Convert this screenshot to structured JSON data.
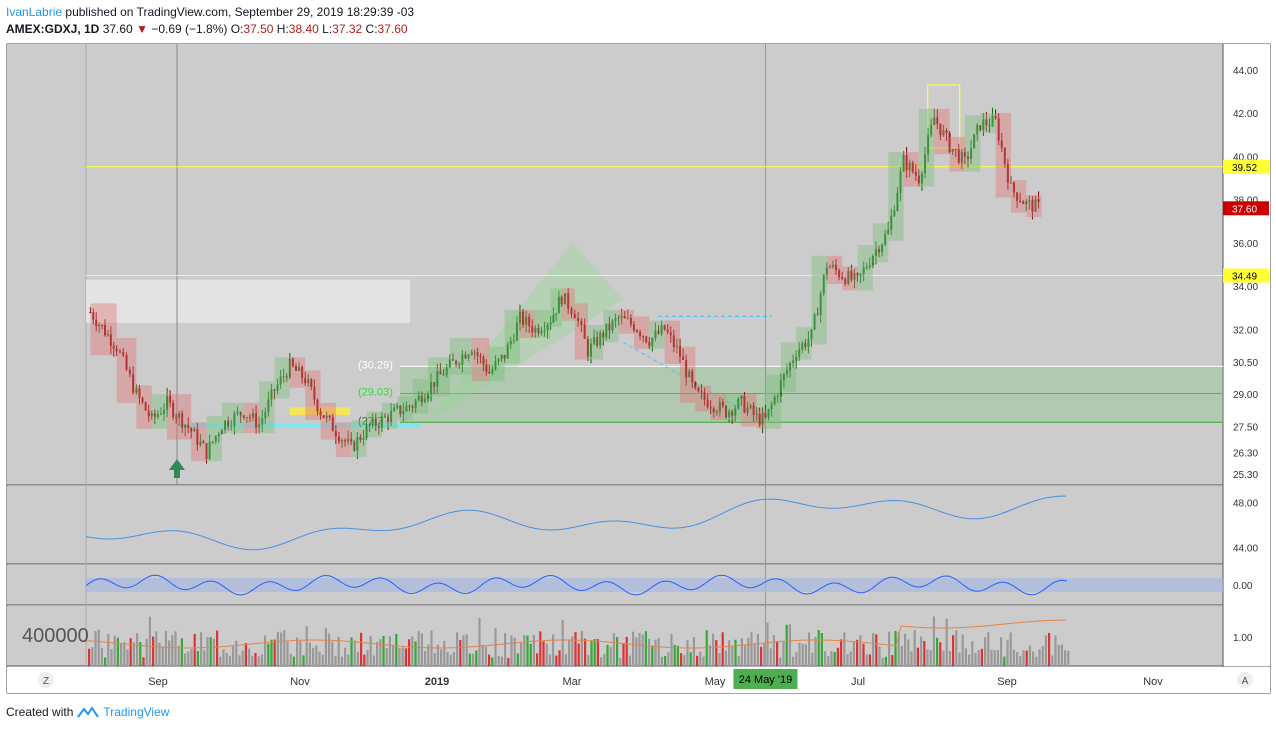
{
  "header": {
    "author": "IvanLabrie",
    "published_text": "published on TradingView.com, September 29, 2019 18:29:39 -03",
    "symbol": "AMEX:GDXJ, 1D",
    "last": "37.60",
    "change": "−0.69 (−1.8%)",
    "o_label": "O:",
    "o_value": "37.50",
    "h_label": "H:",
    "h_value": "38.40",
    "l_label": "L:",
    "l_value": "37.32",
    "c_label": "C:",
    "c_value": "37.60"
  },
  "footer": {
    "created_with": "Created with",
    "brand": "TradingView"
  },
  "colors": {
    "panel_bg": "#cccccc",
    "up": "#0b6b0b",
    "down": "#8b0000",
    "level_line": "#ffff33",
    "price_badge": "#cc0000",
    "level_badge": "#ffff33",
    "oscillator_line": "#2962ff",
    "rsi_line": "#4a90e2",
    "zone_green": "#7fbf7f",
    "zone_red": "#e07a7a"
  },
  "chart_data": {
    "type": "candlestick",
    "symbol": "AMEX:GDXJ",
    "timeframe": "1D",
    "price_axis": {
      "ticks": [
        "44.00",
        "42.00",
        "40.00",
        "38.00",
        "36.00",
        "34.00",
        "32.00",
        "30.50",
        "29.00",
        "27.50",
        "26.30",
        "25.30"
      ],
      "range": [
        24.8,
        45.2
      ]
    },
    "time_axis": {
      "labels": [
        "Sep",
        "Nov",
        "2019",
        "Mar",
        "May",
        "Jul",
        "Sep",
        "Nov"
      ],
      "highlight_label": "24 May '19"
    },
    "horizontal_levels": [
      {
        "price": 39.52,
        "label": "39.52"
      },
      {
        "price": 34.49,
        "label": "34.49"
      }
    ],
    "last_price_badge": "37.60",
    "zone_labels": [
      "(30.29)",
      "(29.03)",
      "(27.7"
    ],
    "series": [
      {
        "name": "close",
        "points": [
          [
            "2018-07-20",
            32.8
          ],
          [
            "2018-08-01",
            31.2
          ],
          [
            "2018-08-10",
            29.0
          ],
          [
            "2018-08-17",
            27.8
          ],
          [
            "2018-08-24",
            28.6
          ],
          [
            "2018-09-04",
            27.3
          ],
          [
            "2018-09-11",
            26.3
          ],
          [
            "2018-09-18",
            27.6
          ],
          [
            "2018-09-28",
            28.2
          ],
          [
            "2018-10-05",
            27.6
          ],
          [
            "2018-10-12",
            29.2
          ],
          [
            "2018-10-19",
            30.3
          ],
          [
            "2018-10-26",
            29.7
          ],
          [
            "2018-11-02",
            28.2
          ],
          [
            "2018-11-09",
            27.3
          ],
          [
            "2018-11-16",
            26.5
          ],
          [
            "2018-11-23",
            27.4
          ],
          [
            "2018-11-30",
            27.8
          ],
          [
            "2018-12-07",
            28.2
          ],
          [
            "2018-12-14",
            28.5
          ],
          [
            "2018-12-21",
            29.3
          ],
          [
            "2018-12-31",
            30.3
          ],
          [
            "2019-01-10",
            31.2
          ],
          [
            "2019-01-18",
            30.0
          ],
          [
            "2019-01-25",
            30.8
          ],
          [
            "2019-02-01",
            32.5
          ],
          [
            "2019-02-08",
            32.0
          ],
          [
            "2019-02-15",
            32.5
          ],
          [
            "2019-02-20",
            33.5
          ],
          [
            "2019-02-26",
            32.8
          ],
          [
            "2019-03-04",
            31.0
          ],
          [
            "2019-03-11",
            31.8
          ],
          [
            "2019-03-18",
            32.5
          ],
          [
            "2019-03-25",
            32.2
          ],
          [
            "2019-04-01",
            31.5
          ],
          [
            "2019-04-08",
            32.0
          ],
          [
            "2019-04-15",
            30.8
          ],
          [
            "2019-04-22",
            29.0
          ],
          [
            "2019-04-29",
            28.6
          ],
          [
            "2019-05-06",
            28.2
          ],
          [
            "2019-05-13",
            28.6
          ],
          [
            "2019-05-20",
            27.9
          ],
          [
            "2019-05-24",
            27.8
          ],
          [
            "2019-05-31",
            29.5
          ],
          [
            "2019-06-07",
            31.0
          ],
          [
            "2019-06-14",
            31.7
          ],
          [
            "2019-06-21",
            35.0
          ],
          [
            "2019-06-28",
            34.5
          ],
          [
            "2019-07-05",
            34.2
          ],
          [
            "2019-07-12",
            35.5
          ],
          [
            "2019-07-19",
            36.5
          ],
          [
            "2019-07-26",
            39.8
          ],
          [
            "2019-08-02",
            39.0
          ],
          [
            "2019-08-09",
            41.8
          ],
          [
            "2019-08-16",
            40.5
          ],
          [
            "2019-08-23",
            39.7
          ],
          [
            "2019-08-30",
            41.5
          ],
          [
            "2019-09-06",
            41.6
          ],
          [
            "2019-09-13",
            38.5
          ],
          [
            "2019-09-20",
            37.8
          ],
          [
            "2019-09-27",
            37.6
          ]
        ]
      }
    ],
    "rsi_panel": {
      "ticks": [
        "48.00",
        "44.00"
      ]
    },
    "oscillator_panel": {
      "ticks": [
        "0.00"
      ]
    },
    "volume_panel": {
      "ticks": [
        "1.00"
      ],
      "label": "400000"
    }
  }
}
